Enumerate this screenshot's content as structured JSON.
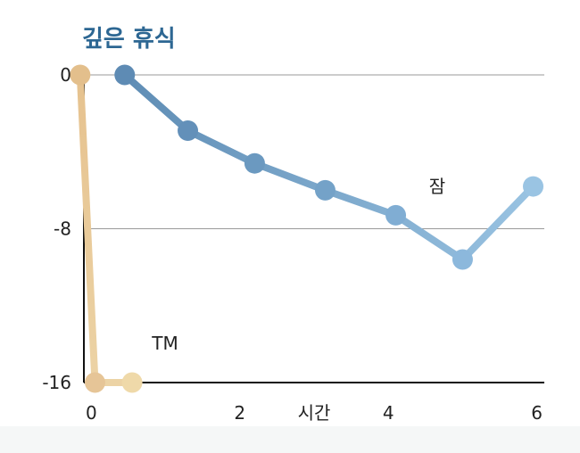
{
  "chart_data": {
    "type": "line",
    "title": "깊은 휴식",
    "xlabel": "시간",
    "ylabel": "",
    "xlim": [
      -0.1,
      6.1
    ],
    "ylim": [
      -16,
      0
    ],
    "x_ticks": [
      "0",
      "2",
      "4",
      "6"
    ],
    "y_ticks": [
      "0",
      "-8",
      "-16"
    ],
    "grid": "horizontal",
    "series": [
      {
        "name": "TM",
        "color": "#e3c08e",
        "points": [
          [
            -0.15,
            0
          ],
          [
            0.05,
            -16
          ],
          [
            0.55,
            -16
          ]
        ]
      },
      {
        "name": "잠",
        "color": "#6f9fc4",
        "points": [
          [
            0.45,
            0
          ],
          [
            1.3,
            -2.9
          ],
          [
            2.2,
            -4.6
          ],
          [
            3.15,
            -6.0
          ],
          [
            4.1,
            -7.3
          ],
          [
            5.0,
            -9.6
          ],
          [
            5.95,
            -5.8
          ]
        ]
      }
    ],
    "annotations": [
      "TM",
      "잠"
    ]
  }
}
